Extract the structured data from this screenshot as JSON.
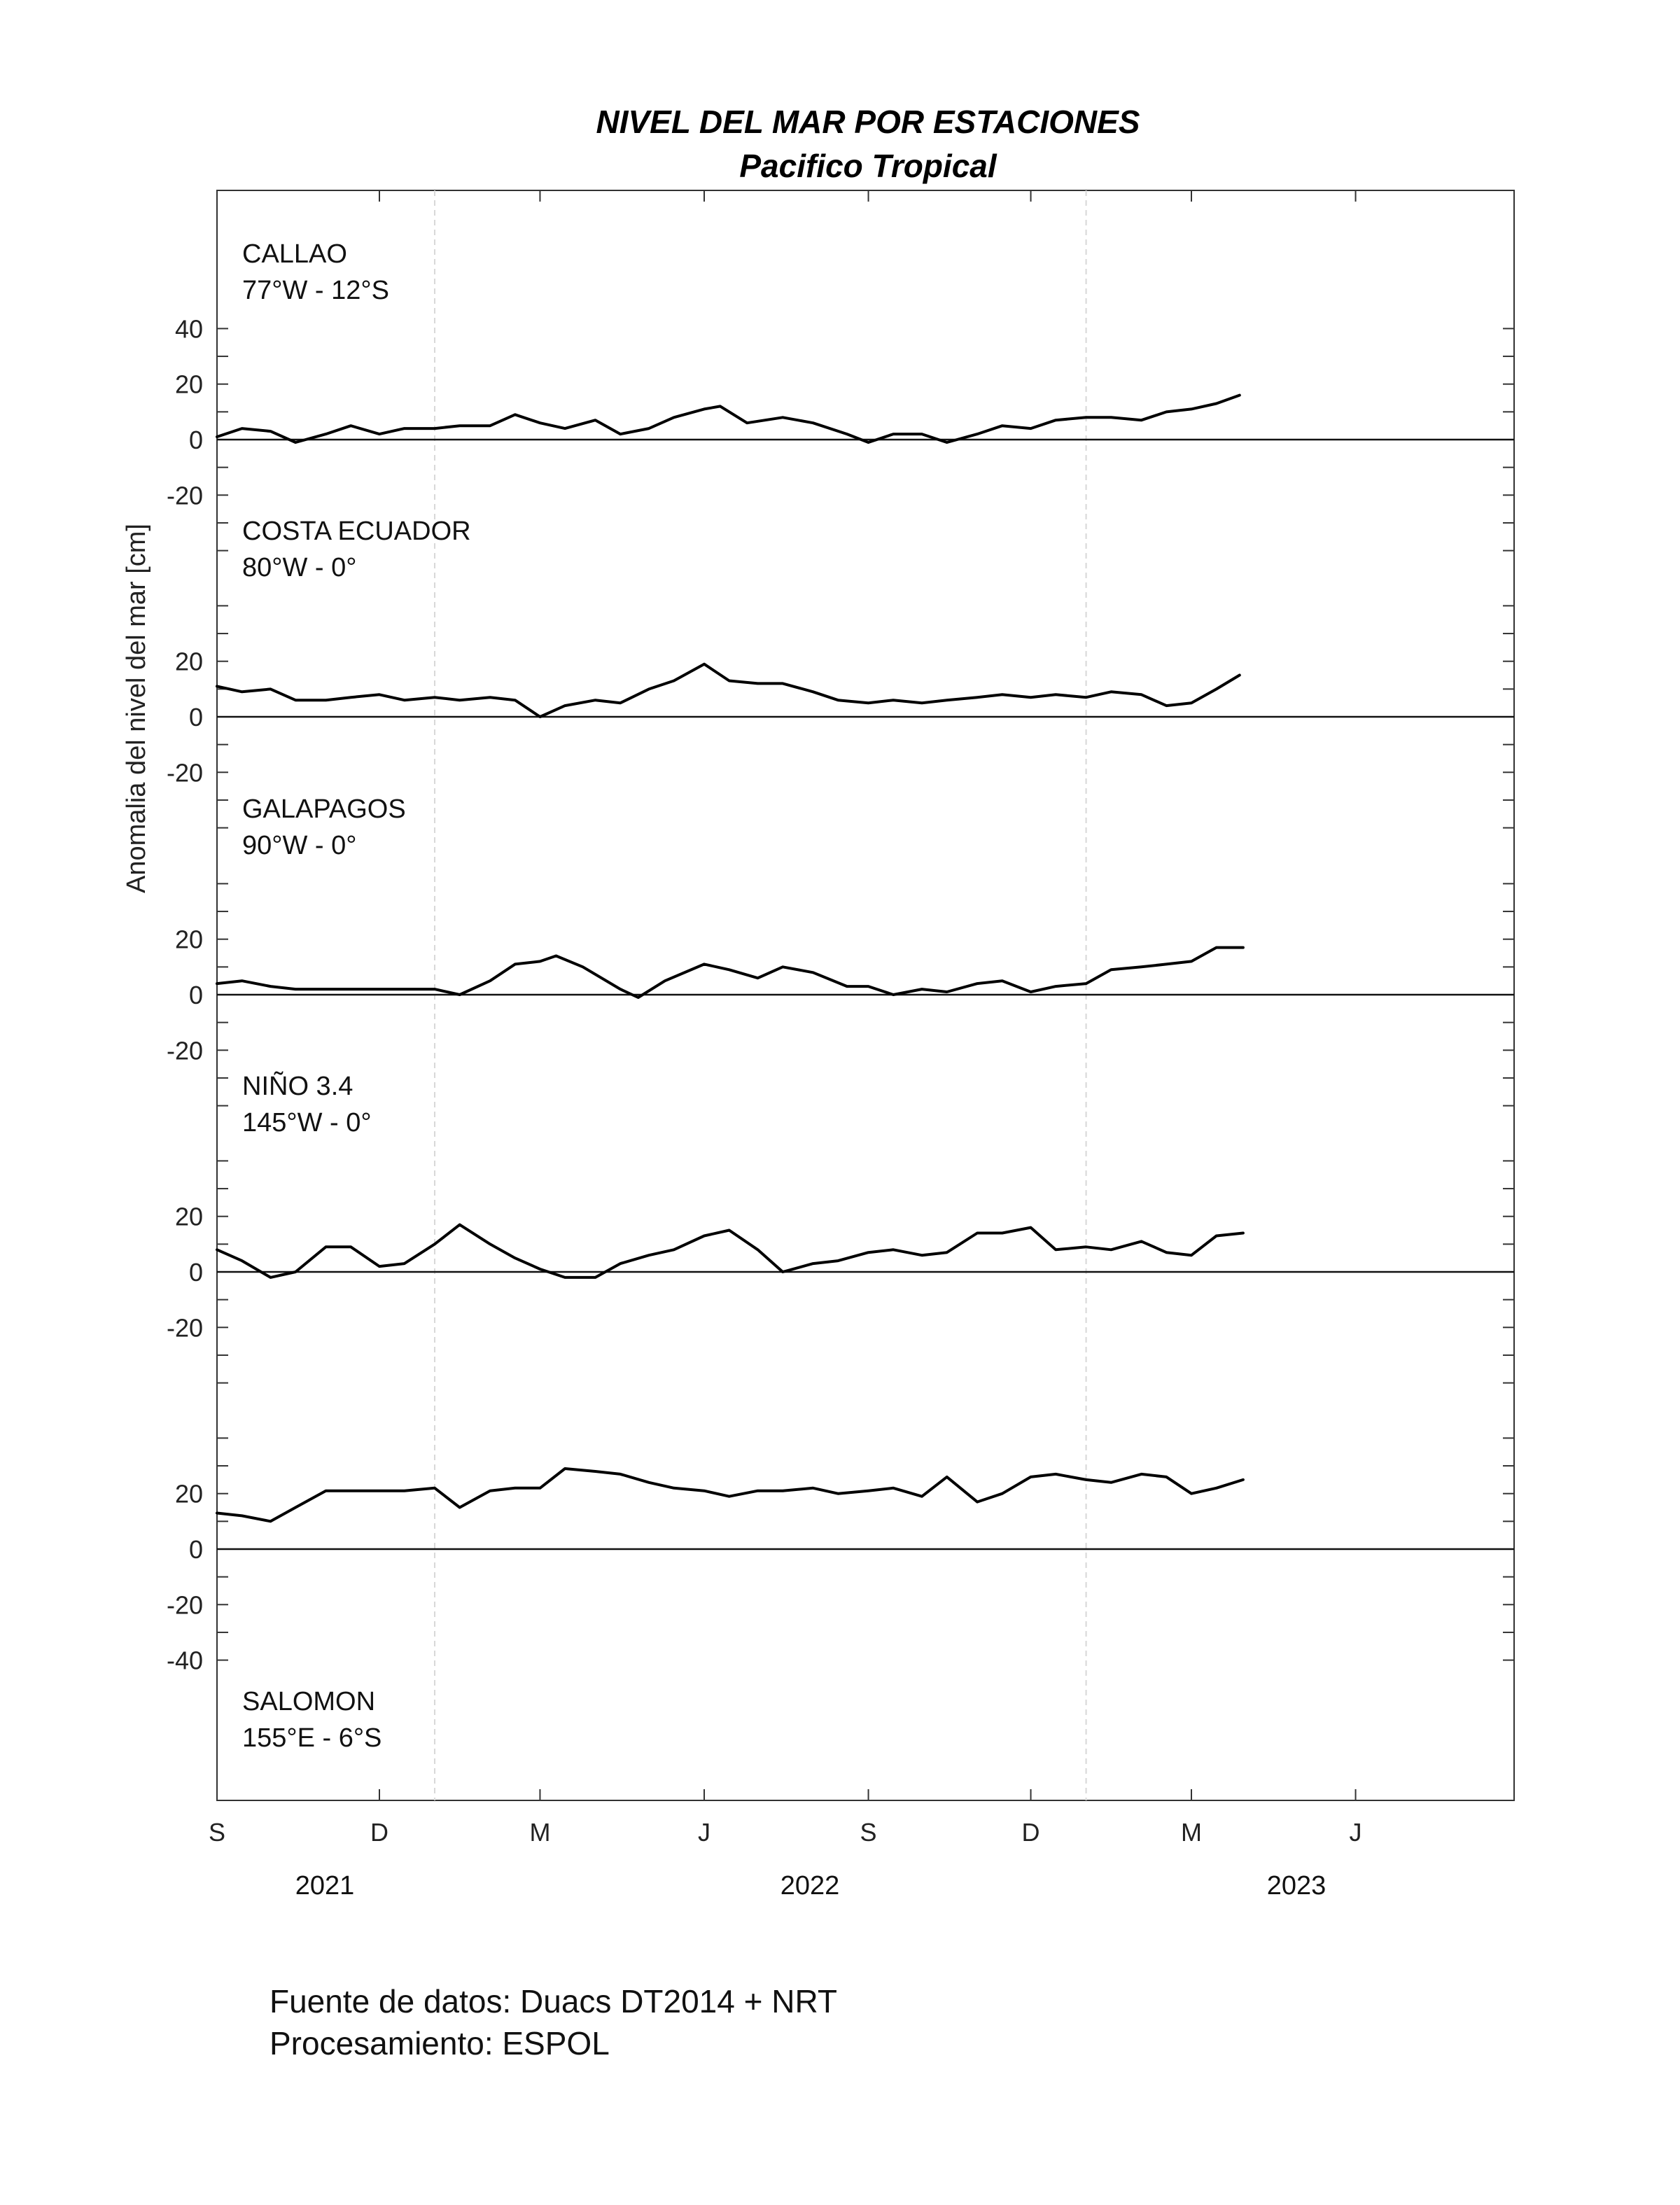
{
  "chart_data": {
    "type": "line",
    "title": "NIVEL DEL MAR POR ESTACIONES",
    "subtitle": "Pacifico Tropical",
    "ylabel": "Anomalia del nivel del mar [cm]",
    "x_month_ticks": [
      "S",
      "D",
      "M",
      "J",
      "S",
      "D",
      "M",
      "J"
    ],
    "x_years": [
      "2021",
      "2022",
      "2023"
    ],
    "grid": false,
    "panels": [
      {
        "station": "CALLAO",
        "coords": "77°W - 12°S",
        "label_position": "top-left",
        "yticks": [
          "40",
          "20",
          "0",
          "-20"
        ],
        "series": [
          [
            "2021-09-01",
            1
          ],
          [
            "2021-09-15",
            4
          ],
          [
            "2021-10-01",
            3
          ],
          [
            "2021-10-15",
            -1
          ],
          [
            "2021-11-01",
            2
          ],
          [
            "2021-11-15",
            5
          ],
          [
            "2021-12-01",
            2
          ],
          [
            "2021-12-15",
            4
          ],
          [
            "2022-01-01",
            4
          ],
          [
            "2022-01-15",
            5
          ],
          [
            "2022-02-01",
            5
          ],
          [
            "2022-02-15",
            9
          ],
          [
            "2022-03-01",
            6
          ],
          [
            "2022-03-15",
            4
          ],
          [
            "2022-04-01",
            7
          ],
          [
            "2022-04-15",
            2
          ],
          [
            "2022-05-01",
            4
          ],
          [
            "2022-05-15",
            8
          ],
          [
            "2022-06-01",
            11
          ],
          [
            "2022-06-10",
            12
          ],
          [
            "2022-06-25",
            6
          ],
          [
            "2022-07-15",
            8
          ],
          [
            "2022-08-01",
            6
          ],
          [
            "2022-08-20",
            2
          ],
          [
            "2022-09-01",
            -1
          ],
          [
            "2022-09-15",
            2
          ],
          [
            "2022-10-01",
            2
          ],
          [
            "2022-10-15",
            -1
          ],
          [
            "2022-11-01",
            2
          ],
          [
            "2022-11-15",
            5
          ],
          [
            "2022-12-01",
            4
          ],
          [
            "2022-12-15",
            7
          ],
          [
            "2023-01-01",
            8
          ],
          [
            "2023-01-15",
            8
          ],
          [
            "2023-02-01",
            7
          ],
          [
            "2023-02-15",
            10
          ],
          [
            "2023-03-01",
            11
          ],
          [
            "2023-03-15",
            13
          ],
          [
            "2023-03-28",
            16
          ]
        ]
      },
      {
        "station": "COSTA ECUADOR",
        "coords": "80°W - 0°",
        "label_position": "top-left",
        "yticks": [
          "20",
          "0",
          "-20"
        ],
        "series": [
          [
            "2021-09-01",
            11
          ],
          [
            "2021-09-15",
            9
          ],
          [
            "2021-10-01",
            10
          ],
          [
            "2021-10-15",
            6
          ],
          [
            "2021-11-01",
            6
          ],
          [
            "2021-11-15",
            7
          ],
          [
            "2021-12-01",
            8
          ],
          [
            "2021-12-15",
            6
          ],
          [
            "2022-01-01",
            7
          ],
          [
            "2022-01-15",
            6
          ],
          [
            "2022-02-01",
            7
          ],
          [
            "2022-02-15",
            6
          ],
          [
            "2022-03-01",
            0
          ],
          [
            "2022-03-15",
            4
          ],
          [
            "2022-04-01",
            6
          ],
          [
            "2022-04-15",
            5
          ],
          [
            "2022-05-01",
            10
          ],
          [
            "2022-05-15",
            13
          ],
          [
            "2022-06-01",
            19
          ],
          [
            "2022-06-15",
            13
          ],
          [
            "2022-07-01",
            12
          ],
          [
            "2022-07-15",
            12
          ],
          [
            "2022-08-01",
            9
          ],
          [
            "2022-08-15",
            6
          ],
          [
            "2022-09-01",
            5
          ],
          [
            "2022-09-15",
            6
          ],
          [
            "2022-10-01",
            5
          ],
          [
            "2022-10-15",
            6
          ],
          [
            "2022-11-01",
            7
          ],
          [
            "2022-11-15",
            8
          ],
          [
            "2022-12-01",
            7
          ],
          [
            "2022-12-15",
            8
          ],
          [
            "2023-01-01",
            7
          ],
          [
            "2023-01-15",
            9
          ],
          [
            "2023-02-01",
            8
          ],
          [
            "2023-02-15",
            4
          ],
          [
            "2023-03-01",
            5
          ],
          [
            "2023-03-15",
            10
          ],
          [
            "2023-03-28",
            15
          ]
        ]
      },
      {
        "station": "GALAPAGOS",
        "coords": "90°W - 0°",
        "label_position": "top-left",
        "yticks": [
          "20",
          "0",
          "-20"
        ],
        "series": [
          [
            "2021-09-01",
            4
          ],
          [
            "2021-09-15",
            5
          ],
          [
            "2021-10-01",
            3
          ],
          [
            "2021-10-15",
            2
          ],
          [
            "2021-11-01",
            2
          ],
          [
            "2021-11-15",
            2
          ],
          [
            "2021-12-01",
            2
          ],
          [
            "2021-12-15",
            2
          ],
          [
            "2022-01-01",
            2
          ],
          [
            "2022-01-15",
            0
          ],
          [
            "2022-02-01",
            5
          ],
          [
            "2022-02-15",
            11
          ],
          [
            "2022-03-01",
            12
          ],
          [
            "2022-03-10",
            14
          ],
          [
            "2022-03-25",
            10
          ],
          [
            "2022-04-15",
            2
          ],
          [
            "2022-04-25",
            -1
          ],
          [
            "2022-05-10",
            5
          ],
          [
            "2022-06-01",
            11
          ],
          [
            "2022-06-15",
            9
          ],
          [
            "2022-07-01",
            6
          ],
          [
            "2022-07-15",
            10
          ],
          [
            "2022-08-01",
            8
          ],
          [
            "2022-08-20",
            3
          ],
          [
            "2022-09-01",
            3
          ],
          [
            "2022-09-15",
            0
          ],
          [
            "2022-10-01",
            2
          ],
          [
            "2022-10-15",
            1
          ],
          [
            "2022-11-01",
            4
          ],
          [
            "2022-11-15",
            5
          ],
          [
            "2022-12-01",
            1
          ],
          [
            "2022-12-15",
            3
          ],
          [
            "2023-01-01",
            4
          ],
          [
            "2023-01-15",
            9
          ],
          [
            "2023-02-01",
            10
          ],
          [
            "2023-02-15",
            11
          ],
          [
            "2023-03-01",
            12
          ],
          [
            "2023-03-15",
            17
          ],
          [
            "2023-03-30",
            17
          ]
        ]
      },
      {
        "station": "NIÑO 3.4",
        "coords": "145°W - 0°",
        "label_position": "top-left",
        "yticks": [
          "20",
          "0",
          "-20"
        ],
        "series": [
          [
            "2021-09-01",
            8
          ],
          [
            "2021-09-15",
            4
          ],
          [
            "2021-10-01",
            -2
          ],
          [
            "2021-10-15",
            0
          ],
          [
            "2021-11-01",
            9
          ],
          [
            "2021-11-15",
            9
          ],
          [
            "2021-12-01",
            2
          ],
          [
            "2021-12-15",
            3
          ],
          [
            "2022-01-01",
            10
          ],
          [
            "2022-01-15",
            17
          ],
          [
            "2022-02-01",
            10
          ],
          [
            "2022-02-15",
            5
          ],
          [
            "2022-03-01",
            1
          ],
          [
            "2022-03-15",
            -2
          ],
          [
            "2022-04-01",
            -2
          ],
          [
            "2022-04-15",
            3
          ],
          [
            "2022-05-01",
            6
          ],
          [
            "2022-05-15",
            8
          ],
          [
            "2022-06-01",
            13
          ],
          [
            "2022-06-15",
            15
          ],
          [
            "2022-07-01",
            8
          ],
          [
            "2022-07-15",
            0
          ],
          [
            "2022-08-01",
            3
          ],
          [
            "2022-08-15",
            4
          ],
          [
            "2022-09-01",
            7
          ],
          [
            "2022-09-15",
            8
          ],
          [
            "2022-10-01",
            6
          ],
          [
            "2022-10-15",
            7
          ],
          [
            "2022-11-01",
            14
          ],
          [
            "2022-11-15",
            14
          ],
          [
            "2022-12-01",
            16
          ],
          [
            "2022-12-15",
            8
          ],
          [
            "2023-01-01",
            9
          ],
          [
            "2023-01-15",
            8
          ],
          [
            "2023-02-01",
            11
          ],
          [
            "2023-02-15",
            7
          ],
          [
            "2023-03-01",
            6
          ],
          [
            "2023-03-15",
            13
          ],
          [
            "2023-03-30",
            14
          ]
        ]
      },
      {
        "station": "SALOMON",
        "coords": "155°E - 6°S",
        "label_position": "bottom-left",
        "yticks": [
          "20",
          "0",
          "-20",
          "-40"
        ],
        "series": [
          [
            "2021-09-01",
            13
          ],
          [
            "2021-09-15",
            12
          ],
          [
            "2021-10-01",
            10
          ],
          [
            "2021-10-15",
            15
          ],
          [
            "2021-11-01",
            21
          ],
          [
            "2021-11-15",
            21
          ],
          [
            "2021-12-01",
            21
          ],
          [
            "2021-12-15",
            21
          ],
          [
            "2022-01-01",
            22
          ],
          [
            "2022-01-15",
            15
          ],
          [
            "2022-02-01",
            21
          ],
          [
            "2022-02-15",
            22
          ],
          [
            "2022-03-01",
            22
          ],
          [
            "2022-03-15",
            29
          ],
          [
            "2022-04-01",
            28
          ],
          [
            "2022-04-15",
            27
          ],
          [
            "2022-05-01",
            24
          ],
          [
            "2022-05-15",
            22
          ],
          [
            "2022-06-01",
            21
          ],
          [
            "2022-06-15",
            19
          ],
          [
            "2022-07-01",
            21
          ],
          [
            "2022-07-15",
            21
          ],
          [
            "2022-08-01",
            22
          ],
          [
            "2022-08-15",
            20
          ],
          [
            "2022-09-01",
            21
          ],
          [
            "2022-09-15",
            22
          ],
          [
            "2022-10-01",
            19
          ],
          [
            "2022-10-15",
            26
          ],
          [
            "2022-11-01",
            17
          ],
          [
            "2022-11-15",
            20
          ],
          [
            "2022-12-01",
            26
          ],
          [
            "2022-12-15",
            27
          ],
          [
            "2023-01-01",
            25
          ],
          [
            "2023-01-15",
            24
          ],
          [
            "2023-02-01",
            27
          ],
          [
            "2023-02-15",
            26
          ],
          [
            "2023-03-01",
            20
          ],
          [
            "2023-03-15",
            22
          ],
          [
            "2023-03-30",
            25
          ]
        ]
      }
    ]
  },
  "footer": {
    "line1": "Fuente de datos: Duacs DT2014 + NRT",
    "line2": "Procesamiento: ESPOL"
  }
}
